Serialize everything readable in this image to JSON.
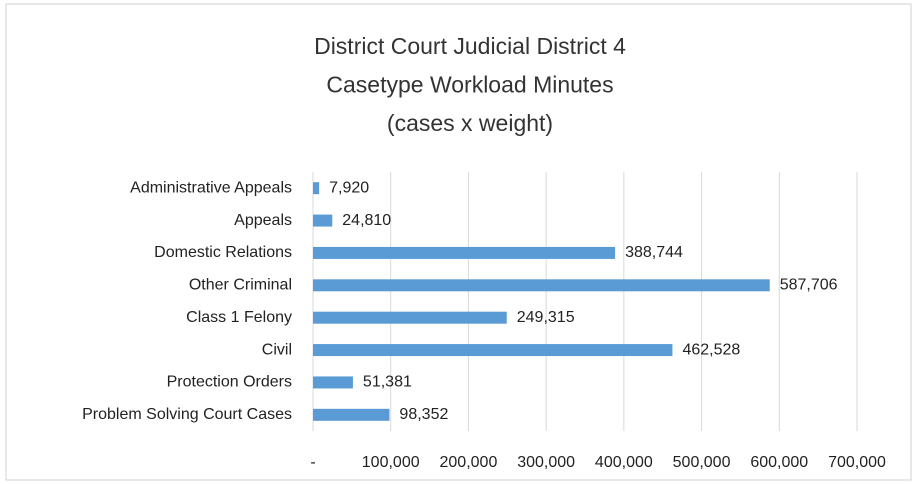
{
  "chart_data": {
    "type": "bar",
    "orientation": "horizontal",
    "title": [
      "District Court Judicial District 4",
      "Casetype Workload Minutes",
      "(cases x weight)"
    ],
    "categories": [
      "Administrative Appeals",
      "Appeals",
      "Domestic Relations",
      "Other Criminal",
      "Class 1 Felony",
      "Civil",
      "Protection Orders",
      "Problem Solving Court Cases"
    ],
    "values": [
      7920,
      24810,
      388744,
      587706,
      249315,
      462528,
      51381,
      98352
    ],
    "value_labels": [
      "7,920",
      "24,810",
      "388,744",
      "587,706",
      "249,315",
      "462,528",
      "51,381",
      "98,352"
    ],
    "color": "#5b9bd5",
    "xlim": [
      0,
      700000
    ],
    "xticks": [
      {
        "value": 0,
        "label": "-"
      },
      {
        "value": 100000,
        "label": "100,000"
      },
      {
        "value": 200000,
        "label": "200,000"
      },
      {
        "value": 300000,
        "label": "300,000"
      },
      {
        "value": 400000,
        "label": "400,000"
      },
      {
        "value": 500000,
        "label": "500,000"
      },
      {
        "value": 600000,
        "label": "600,000"
      },
      {
        "value": 700000,
        "label": "700,000"
      }
    ],
    "grid": true
  }
}
